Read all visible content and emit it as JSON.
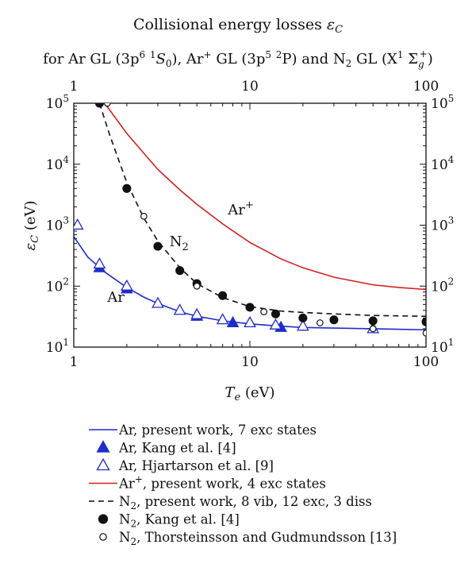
{
  "chart_data": {
    "type": "line",
    "title": "Collisional energy losses εC",
    "subtitle": "for Ar GL (3p6 1S0), Ar+ GL (3p5 2P) and N2 GL (X1 Σg+)",
    "xlabel": "Te (eV)",
    "ylabel": "εC (eV)",
    "x_scale": "log",
    "y_scale": "log",
    "xlim": [
      1,
      100
    ],
    "ylim": [
      10,
      100000
    ],
    "x_ticks": [
      "1",
      "10",
      "100"
    ],
    "y_ticks": [
      "10^1",
      "10^2",
      "10^3",
      "10^4",
      "10^5"
    ],
    "grid": false,
    "legend_position": "below",
    "series": [
      {
        "name": "Ar, present work, 7 exc states",
        "kind": "line",
        "color": "#1f2ccc",
        "dash": "solid",
        "x": [
          1,
          1.2,
          1.5,
          2,
          2.5,
          3,
          4,
          5,
          7,
          10,
          15,
          20,
          30,
          50,
          70,
          100
        ],
        "y": [
          650,
          300,
          170,
          95,
          66,
          52,
          38,
          32,
          27,
          24,
          22,
          21,
          20.5,
          20,
          19.6,
          19.2
        ]
      },
      {
        "name": "Ar, Kang et al. [4]",
        "kind": "marker",
        "marker": "filled-triangle",
        "color": "#1f2ccc",
        "x": [
          1.4,
          2,
          5,
          8,
          15
        ],
        "y": [
          200,
          90,
          32,
          25,
          21
        ]
      },
      {
        "name": "Ar, Hjartarson et al. [9]",
        "kind": "marker",
        "marker": "open-triangle",
        "color": "#1f2ccc",
        "x": [
          1.05,
          1.4,
          2,
          3,
          4,
          5,
          7,
          10,
          14,
          20,
          50
        ],
        "y": [
          1000,
          230,
          100,
          52,
          40,
          34,
          28,
          25,
          23,
          22,
          20
        ]
      },
      {
        "name": "Ar+, present work, 4 exc states",
        "kind": "line",
        "color": "#d42020",
        "dash": "solid",
        "x": [
          1.5,
          2,
          3,
          4,
          5,
          7,
          10,
          15,
          20,
          30,
          50,
          70,
          100
        ],
        "y": [
          100000,
          32000,
          8200,
          3800,
          2200,
          1050,
          520,
          280,
          200,
          140,
          105,
          95,
          88
        ]
      },
      {
        "name": "N2, present work, 8 vib, 12 exc, 3 diss",
        "kind": "line",
        "color": "#111111",
        "dash": "dashed",
        "x": [
          1.4,
          1.6,
          2,
          2.5,
          3,
          4,
          5,
          7,
          10,
          15,
          20,
          30,
          50,
          70,
          100
        ],
        "y": [
          100000,
          30000,
          5000,
          1300,
          550,
          200,
          110,
          65,
          46,
          39,
          37,
          35,
          33,
          32.5,
          32
        ]
      },
      {
        "name": "N2, Kang et al. [4]",
        "kind": "marker",
        "marker": "filled-circle",
        "color": "#111111",
        "x": [
          1.4,
          2,
          3,
          4,
          5,
          7,
          10,
          14,
          20,
          30,
          50,
          100
        ],
        "y": [
          100000,
          4000,
          450,
          180,
          110,
          70,
          45,
          35,
          30,
          28,
          27,
          26
        ]
      },
      {
        "name": "N2, Thorsteinsson and Gudmundsson [13]",
        "kind": "marker",
        "marker": "open-circle",
        "color": "#111111",
        "x": [
          1.55,
          2.5,
          5,
          12,
          25,
          50,
          100
        ],
        "y": [
          100000,
          1400,
          100,
          38,
          25,
          20,
          17
        ]
      }
    ],
    "annotations": [
      {
        "text": "Ar",
        "x": 1.55,
        "y": 55
      },
      {
        "text": "N2",
        "x": 3.5,
        "y": 450
      },
      {
        "text": "Ar+",
        "x": 7.5,
        "y": 1500
      }
    ]
  }
}
